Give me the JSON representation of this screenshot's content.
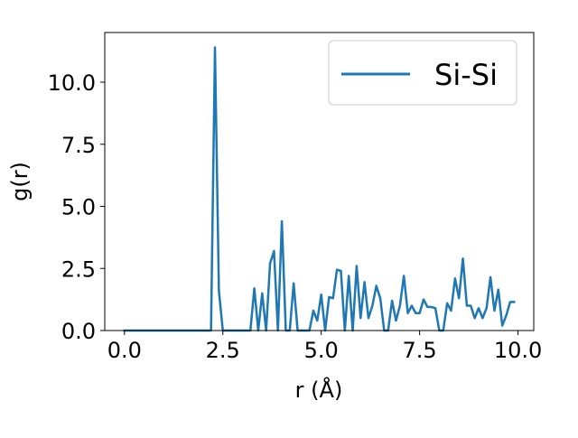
{
  "chart_data": {
    "type": "line",
    "title": "",
    "xlabel": "r (Å)",
    "ylabel": "g(r)",
    "xlim": [
      -0.5,
      10.4
    ],
    "ylim": [
      0,
      12.0
    ],
    "xticks": [
      0.0,
      2.5,
      5.0,
      7.5,
      10.0
    ],
    "xtick_labels": [
      "0.0",
      "2.5",
      "5.0",
      "7.5",
      "10.0"
    ],
    "yticks": [
      0.0,
      2.5,
      5.0,
      7.5,
      10.0
    ],
    "ytick_labels": [
      "0.0",
      "2.5",
      "5.0",
      "7.5",
      "10.0"
    ],
    "grid": false,
    "legend": {
      "placement": "top-right"
    },
    "series": [
      {
        "name": "Si-Si",
        "color": "#1f77b4",
        "x": [
          0.0,
          0.1,
          0.2,
          0.3,
          0.4,
          0.5,
          0.6,
          0.7,
          0.8,
          0.9,
          1.0,
          1.1,
          1.2,
          1.3,
          1.4,
          1.5,
          1.6,
          1.7,
          1.8,
          1.9,
          2.0,
          2.1,
          2.2,
          2.3,
          2.4,
          2.5,
          2.6,
          2.7,
          2.8,
          2.9,
          3.0,
          3.1,
          3.2,
          3.3,
          3.4,
          3.5,
          3.6,
          3.7,
          3.8,
          3.9,
          4.0,
          4.1,
          4.2,
          4.3,
          4.4,
          4.5,
          4.6,
          4.7,
          4.8,
          4.9,
          5.0,
          5.1,
          5.2,
          5.3,
          5.4,
          5.5,
          5.6,
          5.7,
          5.8,
          5.9,
          6.0,
          6.1,
          6.2,
          6.3,
          6.4,
          6.5,
          6.6,
          6.7,
          6.8,
          6.9,
          7.0,
          7.1,
          7.2,
          7.3,
          7.4,
          7.5,
          7.6,
          7.7,
          7.8,
          7.9,
          8.0,
          8.1,
          8.2,
          8.3,
          8.4,
          8.5,
          8.6,
          8.7,
          8.8,
          8.9,
          9.0,
          9.1,
          9.2,
          9.3,
          9.4,
          9.5,
          9.6,
          9.7,
          9.8,
          9.9
        ],
        "y": [
          0,
          0,
          0,
          0,
          0,
          0,
          0,
          0,
          0,
          0,
          0,
          0,
          0,
          0,
          0,
          0,
          0,
          0,
          0,
          0,
          0,
          0,
          0,
          11.4,
          1.6,
          0,
          0,
          0,
          0,
          0,
          0,
          0,
          0,
          1.7,
          0,
          1.5,
          0,
          2.7,
          3.2,
          0,
          4.4,
          0,
          0,
          1.9,
          0,
          0,
          0,
          0,
          0.8,
          0.4,
          1.45,
          0,
          1.35,
          1.3,
          2.45,
          2.4,
          0,
          2.2,
          0,
          2.6,
          0.5,
          1.95,
          0.5,
          1.0,
          1.8,
          1.3,
          0,
          0,
          1.2,
          0.4,
          1.0,
          2.2,
          0.7,
          1.0,
          0.7,
          0.7,
          1.25,
          0.95,
          0.95,
          0.9,
          0,
          0,
          1.1,
          0.8,
          2.1,
          1.3,
          2.9,
          1.0,
          1.0,
          0.5,
          0.9,
          0.5,
          0.9,
          2.15,
          0.8,
          1.65,
          0.2,
          0.6,
          1.15,
          1.15
        ]
      }
    ]
  }
}
